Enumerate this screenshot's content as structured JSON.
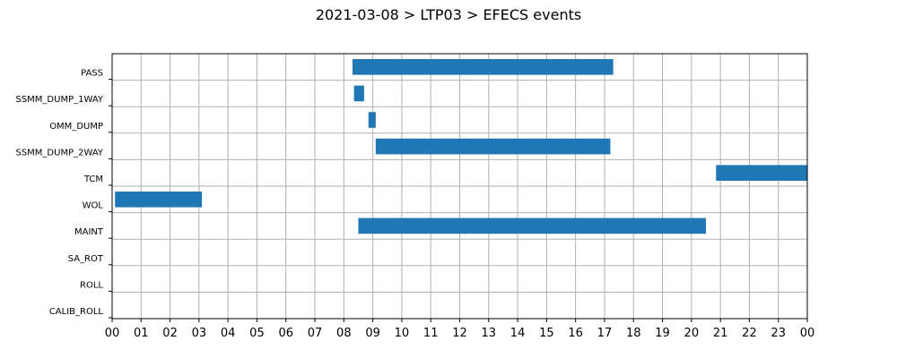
{
  "chart_data": {
    "type": "gantt",
    "title": "2021-03-08 > LTP03 > EFECS events",
    "xlim": [
      0,
      24
    ],
    "xtick_labels": [
      "00",
      "01",
      "02",
      "03",
      "04",
      "05",
      "06",
      "07",
      "08",
      "09",
      "10",
      "11",
      "12",
      "13",
      "14",
      "15",
      "16",
      "17",
      "18",
      "19",
      "20",
      "21",
      "22",
      "23",
      "00"
    ],
    "grid": true,
    "bar_color": "#1f77b4",
    "categories": [
      "PASS",
      "SSMM_DUMP_1WAY",
      "OMM_DUMP",
      "SSMM_DUMP_2WAY",
      "TCM",
      "WOL",
      "MAINT",
      "SA_ROT",
      "ROLL",
      "CALIB_ROLL"
    ],
    "intervals": [
      {
        "category": "PASS",
        "start": 8.3,
        "end": 17.3
      },
      {
        "category": "SSMM_DUMP_1WAY",
        "start": 8.35,
        "end": 8.7
      },
      {
        "category": "OMM_DUMP",
        "start": 8.85,
        "end": 9.1
      },
      {
        "category": "SSMM_DUMP_2WAY",
        "start": 9.1,
        "end": 17.2
      },
      {
        "category": "TCM",
        "start": 20.85,
        "end": 24.0
      },
      {
        "category": "WOL",
        "start": 0.1,
        "end": 3.1
      },
      {
        "category": "MAINT",
        "start": 8.5,
        "end": 20.5
      }
    ]
  }
}
